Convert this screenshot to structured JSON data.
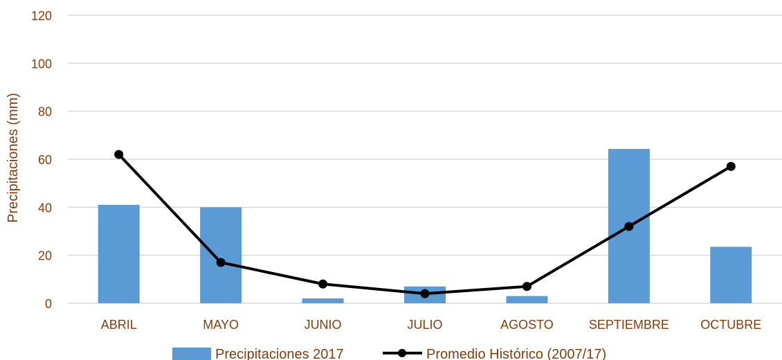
{
  "chart_data": {
    "type": "bar",
    "title": "",
    "xlabel": "",
    "ylabel": "Precipitaciones (mm)",
    "ylim": [
      0,
      120
    ],
    "yticks": [
      0,
      20,
      40,
      60,
      80,
      100,
      120
    ],
    "grid": true,
    "legend_position": "bottom",
    "categories": [
      "ABRIL",
      "MAYO",
      "JUNIO",
      "JULIO",
      "AGOSTO",
      "SEPTIEMBRE",
      "OCTUBRE"
    ],
    "series": [
      {
        "name": "Precipitaciones 2017",
        "type": "bar",
        "color": "#5B9BD5",
        "values": [
          41,
          40,
          2,
          7,
          3,
          64.3,
          23.5
        ]
      },
      {
        "name": "Promedio Histórico (2007/17)",
        "type": "line",
        "color": "#000000",
        "marker": "circle",
        "values": [
          62,
          17,
          8,
          4,
          7,
          32,
          57
        ]
      }
    ]
  },
  "colors": {
    "axis_text": "#843C0C",
    "gridline": "#D9D9D9",
    "bar": "#5B9BD5",
    "line": "#000000"
  }
}
